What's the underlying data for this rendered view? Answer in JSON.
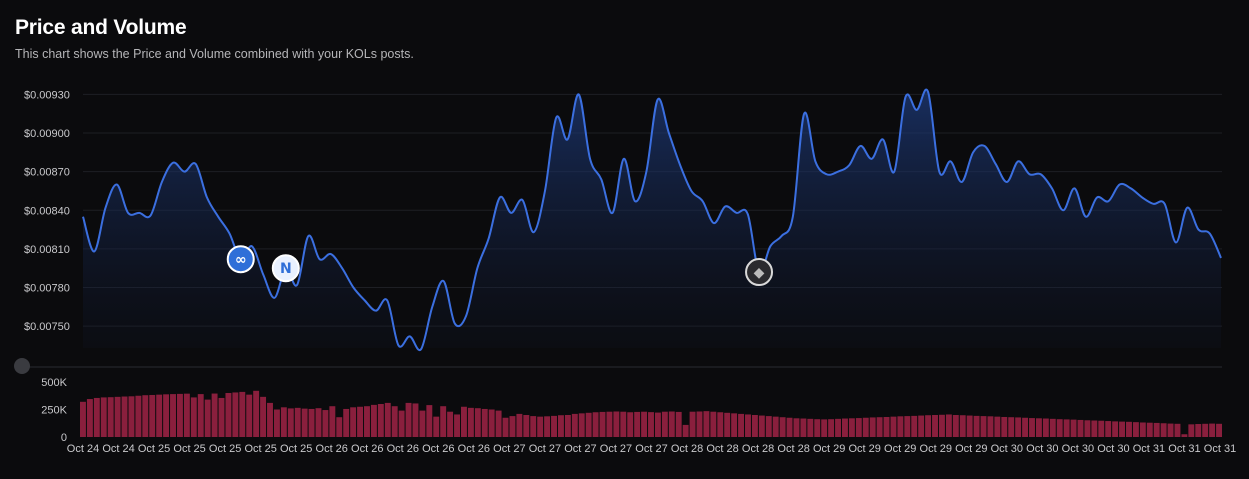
{
  "header": {
    "title": "Price and Volume",
    "subtitle": "This chart shows the Price and Volume combined with your KOLs posts."
  },
  "colors": {
    "price_line": "#3b6fe0",
    "volume_bar": "#8a1f3d",
    "grid": "#1e1f24",
    "background": "#0b0b0d"
  },
  "chart_data": [
    {
      "type": "area",
      "title": "",
      "y_ticks": [
        "$0.00930",
        "$0.00900",
        "$0.00870",
        "$0.00840",
        "$0.00810",
        "$0.00780",
        "$0.00750"
      ],
      "ylim": [
        0.00733,
        0.00935
      ],
      "grid": true,
      "x_tick_labels": [
        "Oct 24",
        "Oct 24",
        "Oct 25",
        "Oct 25",
        "Oct 25",
        "Oct 25",
        "Oct 25",
        "Oct 26",
        "Oct 26",
        "Oct 26",
        "Oct 26",
        "Oct 26",
        "Oct 27",
        "Oct 27",
        "Oct 27",
        "Oct 27",
        "Oct 27",
        "Oct 28",
        "Oct 28",
        "Oct 28",
        "Oct 28",
        "Oct 29",
        "Oct 29",
        "Oct 29",
        "Oct 29",
        "Oct 29",
        "Oct 30",
        "Oct 30",
        "Oct 30",
        "Oct 30",
        "Oct 31",
        "Oct 31",
        "Oct 31"
      ],
      "series": [
        {
          "values": [
            0.00835,
            0.00808,
            0.00842,
            0.0086,
            0.00838,
            0.00838,
            0.00836,
            0.00862,
            0.00877,
            0.0087,
            0.00876,
            0.0085,
            0.00835,
            0.00822,
            0.00802,
            0.00812,
            0.0079,
            0.00772,
            0.00795,
            0.00782,
            0.0082,
            0.00802,
            0.00806,
            0.00795,
            0.0078,
            0.0077,
            0.00762,
            0.0077,
            0.00735,
            0.00742,
            0.00732,
            0.00765,
            0.00785,
            0.00752,
            0.00758,
            0.00795,
            0.00818,
            0.0085,
            0.00838,
            0.00848,
            0.00823,
            0.00855,
            0.00912,
            0.00895,
            0.0093,
            0.0088,
            0.00864,
            0.00838,
            0.0088,
            0.00847,
            0.0087,
            0.00926,
            0.009,
            0.00875,
            0.00855,
            0.00847,
            0.0083,
            0.00843,
            0.00838,
            0.00837,
            0.00792,
            0.00812,
            0.0082,
            0.00835,
            0.00915,
            0.00878,
            0.00868,
            0.0087,
            0.00875,
            0.0089,
            0.0088,
            0.00895,
            0.0087,
            0.00928,
            0.00918,
            0.00932,
            0.0087,
            0.00878,
            0.00862,
            0.00885,
            0.0089,
            0.00876,
            0.00862,
            0.00878,
            0.00868,
            0.00868,
            0.00857,
            0.0084,
            0.00857,
            0.00835,
            0.0085,
            0.00847,
            0.0086,
            0.00857,
            0.0085,
            0.00845,
            0.00845,
            0.00815,
            0.00842,
            0.00825,
            0.00822,
            0.00803
          ]
        }
      ],
      "kol_posts": [
        {
          "index": 14,
          "icon": "kol-avatar-blue-icon"
        },
        {
          "index": 18,
          "icon": "kol-avatar-n-icon"
        },
        {
          "index": 60,
          "icon": "kol-avatar-dark-icon"
        }
      ]
    },
    {
      "type": "bar",
      "title": "",
      "y_ticks": [
        "500K",
        "250K",
        "0"
      ],
      "ylim": [
        0,
        500000
      ],
      "values": [
        320000,
        345000,
        355000,
        360000,
        362000,
        365000,
        368000,
        370000,
        375000,
        380000,
        382000,
        385000,
        388000,
        390000,
        392000,
        394000,
        360000,
        390000,
        340000,
        395000,
        355000,
        400000,
        405000,
        410000,
        385000,
        420000,
        365000,
        310000,
        250000,
        270000,
        260000,
        265000,
        258000,
        255000,
        262000,
        245000,
        280000,
        180000,
        255000,
        270000,
        275000,
        280000,
        292000,
        300000,
        310000,
        280000,
        240000,
        310000,
        305000,
        240000,
        290000,
        185000,
        280000,
        230000,
        205000,
        275000,
        265000,
        262000,
        255000,
        250000,
        240000,
        175000,
        190000,
        210000,
        200000,
        190000,
        185000,
        188000,
        192000,
        198000,
        200000,
        210000,
        215000,
        220000,
        225000,
        228000,
        230000,
        232000,
        230000,
        225000,
        228000,
        230000,
        226000,
        222000,
        230000,
        232000,
        228000,
        110000,
        230000,
        232000,
        235000,
        230000,
        225000,
        220000,
        215000,
        210000,
        205000,
        200000,
        195000,
        190000,
        185000,
        180000,
        175000,
        170000,
        168000,
        165000,
        162000,
        160000,
        162000,
        165000,
        168000,
        170000,
        172000,
        175000,
        178000,
        180000,
        182000,
        185000,
        188000,
        190000,
        192000,
        195000,
        198000,
        200000,
        202000,
        205000,
        200000,
        198000,
        195000,
        192000,
        190000,
        188000,
        185000,
        182000,
        180000,
        178000,
        175000,
        172000,
        170000,
        168000,
        165000,
        162000,
        160000,
        158000,
        155000,
        152000,
        150000,
        148000,
        145000,
        142000,
        140000,
        138000,
        135000,
        132000,
        130000,
        128000,
        125000,
        122000,
        120000,
        25000,
        115000,
        118000,
        120000,
        122000,
        120000
      ]
    }
  ]
}
